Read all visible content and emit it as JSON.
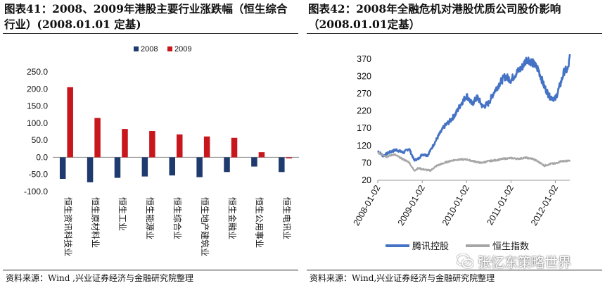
{
  "left": {
    "title": "图表41：2008、2009年港股主要行业涨跌幅（恒生综合行业）(2008.01.01 定基)",
    "source": "资料来源：Wind ,兴业证券经济与金融研究院整理"
  },
  "right": {
    "title": "图表42：2008年全融危机对港股优质公司股价影响（2008.01.01定基）",
    "source": "资料来源：Wind,兴业证券经济与金融研究院整理"
  },
  "watermark": {
    "text": "张忆东策略世界",
    "icon": "wechat-icon"
  },
  "chart_data": [
    {
      "type": "bar",
      "categories": [
        "恒生资讯科技业",
        "恒生原材料业",
        "恒生工业",
        "恒生能源业",
        "恒生综合业",
        "恒生地产建筑业",
        "恒生金融业",
        "恒生公用事业",
        "恒生电讯业"
      ],
      "series": [
        {
          "name": "2008",
          "color": "#1f3a6e",
          "values": [
            -63,
            -73,
            -60,
            -56,
            -53,
            -58,
            -43,
            -27,
            -43
          ]
        },
        {
          "name": "2009",
          "color": "#c8161d",
          "values": [
            205,
            115,
            83,
            77,
            67,
            61,
            57,
            15,
            -3
          ]
        }
      ],
      "ylim": [
        -100,
        250
      ],
      "yticks": [
        "-100.0",
        "-50.0",
        "0.0",
        "50.0",
        "100.0",
        "150.0",
        "200.0",
        "250.0"
      ],
      "legend": "top",
      "grid": false
    },
    {
      "type": "line",
      "x_start": "2008-01-02",
      "x_end": "2012-04-30",
      "xticks": [
        "2008-01-02",
        "2009-01-02",
        "2010-01-02",
        "2011-01-02",
        "2012-01-02"
      ],
      "ylim": [
        20,
        390
      ],
      "yticks": [
        20,
        70,
        120,
        170,
        220,
        270,
        320,
        370
      ],
      "legend": "bottom",
      "grid": false,
      "series": [
        {
          "name": "腾讯控股",
          "color": "#4472c4",
          "points": [
            [
              "2008-01-02",
              105
            ],
            [
              "2008-02-15",
              90
            ],
            [
              "2008-04-01",
              100
            ],
            [
              "2008-06-01",
              108
            ],
            [
              "2008-08-01",
              100
            ],
            [
              "2008-09-15",
              112
            ],
            [
              "2008-10-27",
              78
            ],
            [
              "2008-12-01",
              82
            ],
            [
              "2009-01-02",
              95
            ],
            [
              "2009-02-15",
              92
            ],
            [
              "2009-04-01",
              120
            ],
            [
              "2009-05-15",
              148
            ],
            [
              "2009-07-01",
              175
            ],
            [
              "2009-08-15",
              190
            ],
            [
              "2009-10-01",
              210
            ],
            [
              "2009-11-15",
              240
            ],
            [
              "2010-01-02",
              265
            ],
            [
              "2010-02-15",
              240
            ],
            [
              "2010-04-01",
              260
            ],
            [
              "2010-05-15",
              232
            ],
            [
              "2010-07-01",
              242
            ],
            [
              "2010-08-15",
              275
            ],
            [
              "2010-10-01",
              300
            ],
            [
              "2010-11-15",
              320
            ],
            [
              "2011-01-02",
              310
            ],
            [
              "2011-02-15",
              330
            ],
            [
              "2011-04-01",
              345
            ],
            [
              "2011-05-15",
              372
            ],
            [
              "2011-07-01",
              358
            ],
            [
              "2011-08-15",
              340
            ],
            [
              "2011-10-01",
              292
            ],
            [
              "2011-11-15",
              262
            ],
            [
              "2012-01-02",
              255
            ],
            [
              "2012-02-15",
              300
            ],
            [
              "2012-03-15",
              335
            ],
            [
              "2012-04-15",
              340
            ],
            [
              "2012-04-30",
              375
            ]
          ]
        },
        {
          "name": "恒生指数",
          "color": "#a6a6a6",
          "points": [
            [
              "2008-01-02",
              100
            ],
            [
              "2008-03-15",
              88
            ],
            [
              "2008-05-15",
              95
            ],
            [
              "2008-07-15",
              83
            ],
            [
              "2008-09-15",
              72
            ],
            [
              "2008-10-27",
              48
            ],
            [
              "2008-12-01",
              55
            ],
            [
              "2009-01-02",
              52
            ],
            [
              "2009-03-09",
              48
            ],
            [
              "2009-05-01",
              62
            ],
            [
              "2009-07-01",
              70
            ],
            [
              "2009-09-01",
              77
            ],
            [
              "2009-11-01",
              80
            ],
            [
              "2010-01-02",
              80
            ],
            [
              "2010-03-01",
              75
            ],
            [
              "2010-05-01",
              70
            ],
            [
              "2010-07-01",
              75
            ],
            [
              "2010-09-01",
              78
            ],
            [
              "2010-11-01",
              82
            ],
            [
              "2011-01-02",
              84
            ],
            [
              "2011-03-01",
              82
            ],
            [
              "2011-05-01",
              85
            ],
            [
              "2011-07-01",
              82
            ],
            [
              "2011-09-01",
              70
            ],
            [
              "2011-10-04",
              62
            ],
            [
              "2011-12-01",
              68
            ],
            [
              "2012-01-02",
              68
            ],
            [
              "2012-02-15",
              75
            ],
            [
              "2012-04-30",
              76
            ]
          ]
        }
      ]
    }
  ]
}
